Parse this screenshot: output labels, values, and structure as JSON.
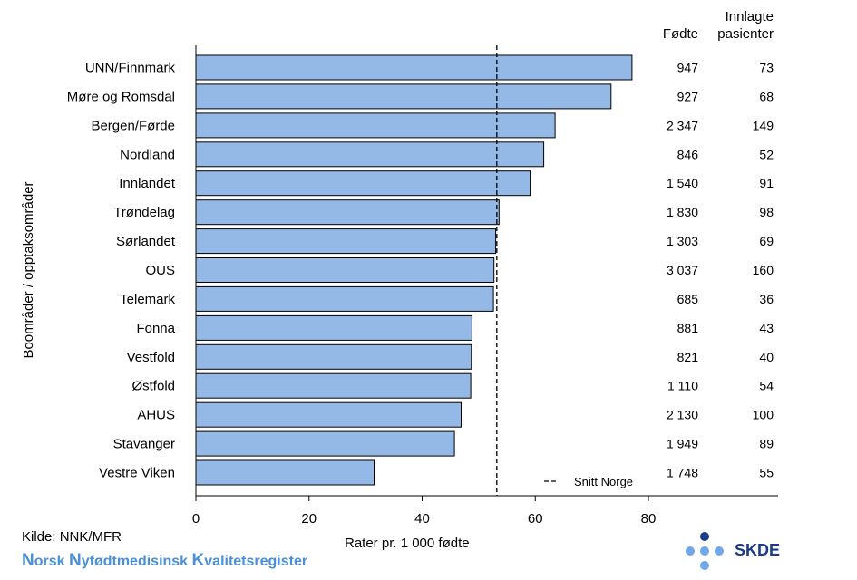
{
  "chart_data": {
    "type": "bar",
    "orientation": "horizontal",
    "categories": [
      "UNN/Finnmark",
      "Møre og Romsdal",
      "Bergen/Førde",
      "Nordland",
      "Innlandet",
      "Trøndelag",
      "Sørlandet",
      "OUS",
      "Telemark",
      "Fonna",
      "Vestfold",
      "Østfold",
      "AHUS",
      "Stavanger",
      "Vestre Viken"
    ],
    "values": [
      77.1,
      73.4,
      63.5,
      61.5,
      59.1,
      53.6,
      53.0,
      52.7,
      52.6,
      48.8,
      48.7,
      48.6,
      46.9,
      45.7,
      31.5
    ],
    "fodte": [
      "947",
      "927",
      "2 347",
      "846",
      "1 540",
      "1 830",
      "1 303",
      "3 037",
      "685",
      "881",
      "821",
      "1 110",
      "2 130",
      "1 949",
      "1 748"
    ],
    "innlagte": [
      "73",
      "68",
      "149",
      "52",
      "91",
      "98",
      "69",
      "160",
      "36",
      "43",
      "40",
      "54",
      "100",
      "89",
      "55"
    ],
    "average": 53.2,
    "average_label": "Snitt Norge",
    "xlim": [
      0,
      80
    ],
    "xticks": [
      0,
      20,
      40,
      60,
      80
    ],
    "xlabel": "Rater pr. 1 000 fødte",
    "ylabel": "Boområder / opptaksområder",
    "col1_header": "Fødte",
    "col2_header_line1": "Innlagte",
    "col2_header_line2": "pasienter",
    "bar_color": "#95b9e7",
    "grid": false,
    "legend": "bottom-right"
  },
  "footer": {
    "source": "Kilde: NNK/MFR",
    "brand_parts": [
      {
        "cap": "N",
        "rest": "orsk "
      },
      {
        "cap": "N",
        "rest": "yfødtmedisinsk "
      },
      {
        "cap": "K",
        "rest": "valitetsregister"
      }
    ],
    "logo_text": "SKDE"
  },
  "colors": {
    "brand": "#4a90d9",
    "logo_dark": "#1a3a8a",
    "logo_light": "#6fa8e8"
  }
}
